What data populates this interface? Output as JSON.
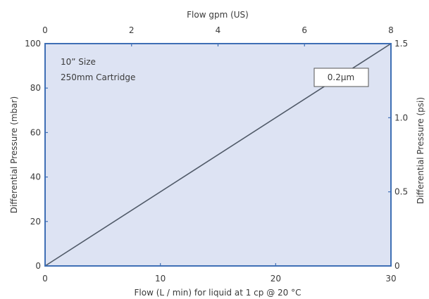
{
  "chart_data": {
    "type": "line",
    "title": "",
    "xlabel": "Flow (L / min) for liquid at 1 cp @ 20 °C",
    "ylabel": "Differential Pressure (mbar)",
    "xlim": [
      0,
      30
    ],
    "ylim": [
      0,
      100
    ],
    "x_ticks": [
      0,
      10,
      20,
      30
    ],
    "y_ticks": [
      0,
      20,
      40,
      60,
      80,
      100
    ],
    "secondary_x": {
      "label": "Flow gpm (US)",
      "lim": [
        0,
        8
      ],
      "ticks": [
        0,
        2,
        4,
        6,
        8
      ]
    },
    "secondary_y": {
      "label": "Differential Pressure (psi)",
      "lim": [
        0,
        1.5
      ],
      "ticks": [
        "0",
        "0.5",
        "1.0",
        "1.5"
      ]
    },
    "series": [
      {
        "name": "0.2µm",
        "x": [
          0,
          30
        ],
        "y": [
          0,
          100
        ]
      }
    ],
    "annotations": [
      "10” Size",
      "250mm Cartridge"
    ],
    "grid": false,
    "plot_background": "#dde3f3",
    "frame_color": "#3f6fb5",
    "line_color": "#505a68"
  }
}
